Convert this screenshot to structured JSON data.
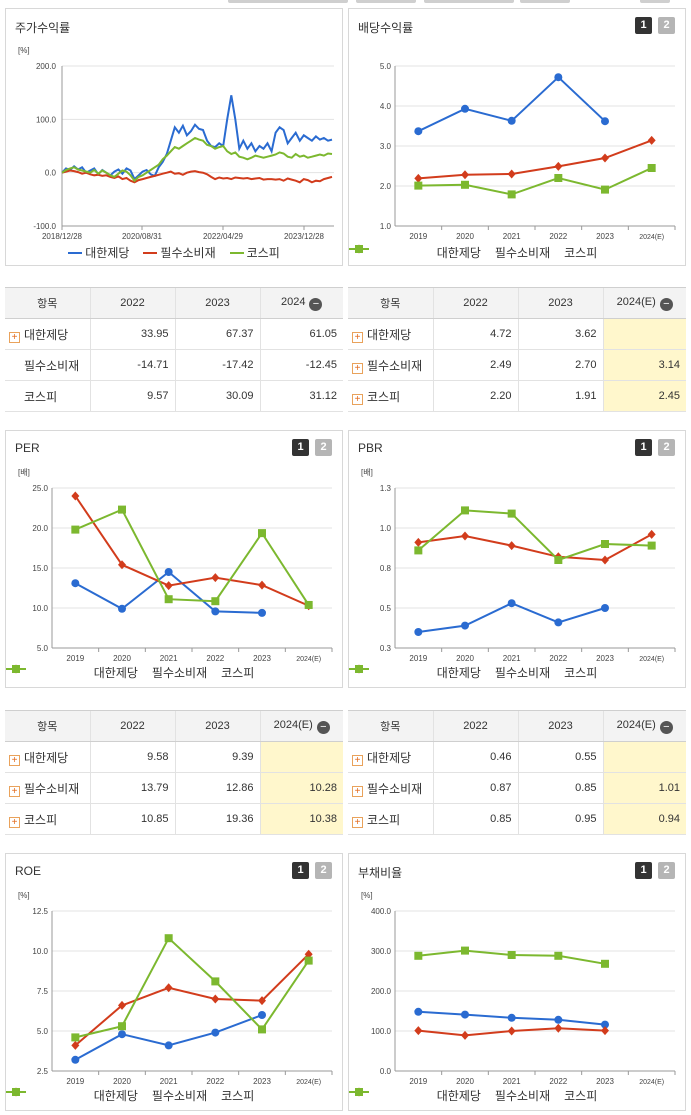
{
  "colors": {
    "company": "#2a6bd1",
    "sector": "#d23c1c",
    "market": "#7cb82f"
  },
  "legend": {
    "company": "대한제당",
    "sector": "필수소비재",
    "market": "코스피"
  },
  "pager": {
    "one": "1",
    "two": "2"
  },
  "charts": {
    "stock": {
      "title": "주가수익률",
      "unit": "[%]",
      "chart_data": {
        "type": "line",
        "title": "주가수익률",
        "ylabel": "[%]",
        "ylim": [
          -100,
          200
        ],
        "yticks": [
          "200.0",
          "100.0",
          "0.0",
          "-100.0"
        ],
        "xticks": [
          "2018/12/28",
          "2020/08/31",
          "2022/04/29",
          "2023/12/28"
        ],
        "series": [
          {
            "name": "대한제당",
            "values": [
              0,
              8,
              5,
              12,
              6,
              10,
              0,
              4,
              8,
              -3,
              5,
              0,
              -5,
              2,
              6,
              -2,
              8,
              4,
              -12,
              -5,
              2,
              5,
              -3,
              -6,
              10,
              20,
              35,
              60,
              85,
              75,
              88,
              70,
              78,
              90,
              82,
              80,
              60,
              50,
              48,
              55,
              50,
              100,
              145,
              100,
              45,
              60,
              45,
              55,
              40,
              50,
              45,
              55,
              40,
              75,
              85,
              80,
              55,
              65,
              75,
              60,
              70,
              65,
              60,
              68,
              62,
              65,
              60,
              62
            ]
          },
          {
            "name": "필수소비재",
            "values": [
              0,
              2,
              4,
              3,
              1,
              -2,
              0,
              -3,
              -5,
              -4,
              -6,
              -5,
              -8,
              -10,
              -7,
              -12,
              -10,
              -15,
              -18,
              -14,
              -12,
              -10,
              -8,
              -6,
              -4,
              -2,
              0,
              2,
              -2,
              -1,
              -4,
              0,
              2,
              3,
              1,
              0,
              -3,
              -8,
              -12,
              -9,
              -11,
              -10,
              -12,
              -9,
              -10,
              -11,
              -10,
              -12,
              -11,
              -10,
              -13,
              -12,
              -12,
              -13,
              -12,
              -15,
              -11,
              -13,
              -15,
              -18,
              -12,
              -14,
              -18,
              -15,
              -16,
              -12,
              -10,
              -8
            ]
          },
          {
            "name": "코스피",
            "values": [
              0,
              5,
              8,
              10,
              6,
              4,
              2,
              0,
              5,
              -2,
              4,
              0,
              -5,
              -8,
              -2,
              4,
              2,
              -5,
              -15,
              -8,
              -5,
              0,
              5,
              10,
              15,
              25,
              32,
              40,
              48,
              45,
              50,
              55,
              60,
              65,
              62,
              60,
              52,
              50,
              45,
              48,
              50,
              40,
              35,
              38,
              30,
              28,
              25,
              28,
              32,
              30,
              28,
              30,
              32,
              34,
              38,
              36,
              30,
              28,
              35,
              30,
              32,
              28,
              30,
              32,
              34,
              32,
              36,
              35
            ]
          }
        ]
      }
    },
    "dividend": {
      "title": "배당수익률",
      "chart_data": {
        "type": "line",
        "title": "배당수익률",
        "ylim": [
          1.0,
          5.0
        ],
        "yticks": [
          "5.0",
          "4.0",
          "3.0",
          "2.0",
          "1.0"
        ],
        "categories": [
          "2019",
          "2020",
          "2021",
          "2022",
          "2023",
          "2024(E)"
        ],
        "series": [
          {
            "name": "대한제당",
            "values": [
              3.37,
              3.93,
              3.63,
              4.72,
              3.62,
              null
            ]
          },
          {
            "name": "필수소비재",
            "values": [
              2.19,
              2.28,
              2.3,
              2.49,
              2.7,
              3.14
            ]
          },
          {
            "name": "코스피",
            "values": [
              2.01,
              2.03,
              1.79,
              2.2,
              1.91,
              2.45
            ]
          }
        ]
      }
    },
    "per": {
      "title": "PER",
      "unit": "[배]",
      "chart_data": {
        "type": "line",
        "title": "PER",
        "ylabel": "[배]",
        "ylim": [
          5.0,
          25.0
        ],
        "yticks": [
          "25.0",
          "20.0",
          "15.0",
          "10.0",
          "5.0"
        ],
        "categories": [
          "2019",
          "2020",
          "2021",
          "2022",
          "2023",
          "2024(E)"
        ],
        "series": [
          {
            "name": "대한제당",
            "values": [
              13.1,
              9.9,
              14.5,
              9.58,
              9.39,
              null
            ]
          },
          {
            "name": "필수소비재",
            "values": [
              24.0,
              15.4,
              12.8,
              13.79,
              12.86,
              10.28
            ]
          },
          {
            "name": "코스피",
            "values": [
              19.8,
              22.3,
              11.1,
              10.85,
              19.36,
              10.38
            ]
          }
        ]
      }
    },
    "pbr": {
      "title": "PBR",
      "unit": "[배]",
      "chart_data": {
        "type": "line",
        "title": "PBR",
        "ylabel": "[배]",
        "ylim": [
          0.3,
          1.3
        ],
        "yticks": [
          "1.3",
          "1.0",
          "0.8",
          "0.5",
          "0.3"
        ],
        "categories": [
          "2019",
          "2020",
          "2021",
          "2022",
          "2023",
          "2024(E)"
        ],
        "series": [
          {
            "name": "대한제당",
            "values": [
              0.4,
              0.44,
              0.58,
              0.46,
              0.55,
              null
            ]
          },
          {
            "name": "필수소비재",
            "values": [
              0.96,
              1.0,
              0.94,
              0.87,
              0.85,
              1.01
            ]
          },
          {
            "name": "코스피",
            "values": [
              0.91,
              1.16,
              1.14,
              0.85,
              0.95,
              0.94
            ]
          }
        ]
      }
    },
    "roe": {
      "title": "ROE",
      "unit": "[%]",
      "chart_data": {
        "type": "line",
        "title": "ROE",
        "ylabel": "[%]",
        "ylim": [
          2.5,
          12.5
        ],
        "yticks": [
          "12.5",
          "10.0",
          "7.5",
          "5.0",
          "2.5"
        ],
        "categories": [
          "2019",
          "2020",
          "2021",
          "2022",
          "2023",
          "2024(E)"
        ],
        "series": [
          {
            "name": "대한제당",
            "values": [
              3.2,
              4.8,
              4.1,
              4.9,
              6.0,
              null
            ]
          },
          {
            "name": "필수소비재",
            "values": [
              4.1,
              6.6,
              7.7,
              7.0,
              6.9,
              9.8
            ]
          },
          {
            "name": "코스피",
            "values": [
              4.6,
              5.3,
              10.8,
              8.1,
              5.1,
              9.4
            ]
          }
        ]
      }
    },
    "debt": {
      "title": "부채비율",
      "unit": "[%]",
      "chart_data": {
        "type": "line",
        "title": "부채비율",
        "ylabel": "[%]",
        "ylim": [
          0,
          400
        ],
        "yticks": [
          "400.0",
          "300.0",
          "200.0",
          "100.0",
          "0.0"
        ],
        "categories": [
          "2019",
          "2020",
          "2021",
          "2022",
          "2023",
          "2024(E)"
        ],
        "series": [
          {
            "name": "대한제당",
            "values": [
              148,
              141,
              133,
              128,
              116,
              null
            ]
          },
          {
            "name": "필수소비재",
            "values": [
              101,
              89,
              100,
              107,
              101,
              null
            ]
          },
          {
            "name": "코스피",
            "values": [
              288,
              301,
              290,
              288,
              268,
              null
            ]
          }
        ]
      }
    }
  },
  "tables": {
    "stock": {
      "header": [
        "항목",
        "2022",
        "2023",
        "2024"
      ],
      "rows": [
        {
          "label": "대한제당",
          "plus": true,
          "values": [
            "33.95",
            "67.37",
            "61.05"
          ]
        },
        {
          "label": "필수소비재",
          "plus": false,
          "values": [
            "-14.71",
            "-17.42",
            "-12.45"
          ]
        },
        {
          "label": "코스피",
          "plus": false,
          "values": [
            "9.57",
            "30.09",
            "31.12"
          ]
        }
      ]
    },
    "dividend": {
      "header": [
        "항목",
        "2022",
        "2023",
        "2024(E)"
      ],
      "rows": [
        {
          "label": "대한제당",
          "plus": true,
          "values": [
            "4.72",
            "3.62",
            ""
          ]
        },
        {
          "label": "필수소비재",
          "plus": true,
          "values": [
            "2.49",
            "2.70",
            "3.14"
          ]
        },
        {
          "label": "코스피",
          "plus": true,
          "values": [
            "2.20",
            "1.91",
            "2.45"
          ]
        }
      ]
    },
    "per": {
      "header": [
        "항목",
        "2022",
        "2023",
        "2024(E)"
      ],
      "rows": [
        {
          "label": "대한제당",
          "plus": true,
          "values": [
            "9.58",
            "9.39",
            ""
          ]
        },
        {
          "label": "필수소비재",
          "plus": true,
          "values": [
            "13.79",
            "12.86",
            "10.28"
          ]
        },
        {
          "label": "코스피",
          "plus": true,
          "values": [
            "10.85",
            "19.36",
            "10.38"
          ]
        }
      ]
    },
    "pbr": {
      "header": [
        "항목",
        "2022",
        "2023",
        "2024(E)"
      ],
      "rows": [
        {
          "label": "대한제당",
          "plus": true,
          "values": [
            "0.46",
            "0.55",
            ""
          ]
        },
        {
          "label": "필수소비재",
          "plus": true,
          "values": [
            "0.87",
            "0.85",
            "1.01"
          ]
        },
        {
          "label": "코스피",
          "plus": true,
          "values": [
            "0.85",
            "0.95",
            "0.94"
          ]
        }
      ]
    }
  }
}
